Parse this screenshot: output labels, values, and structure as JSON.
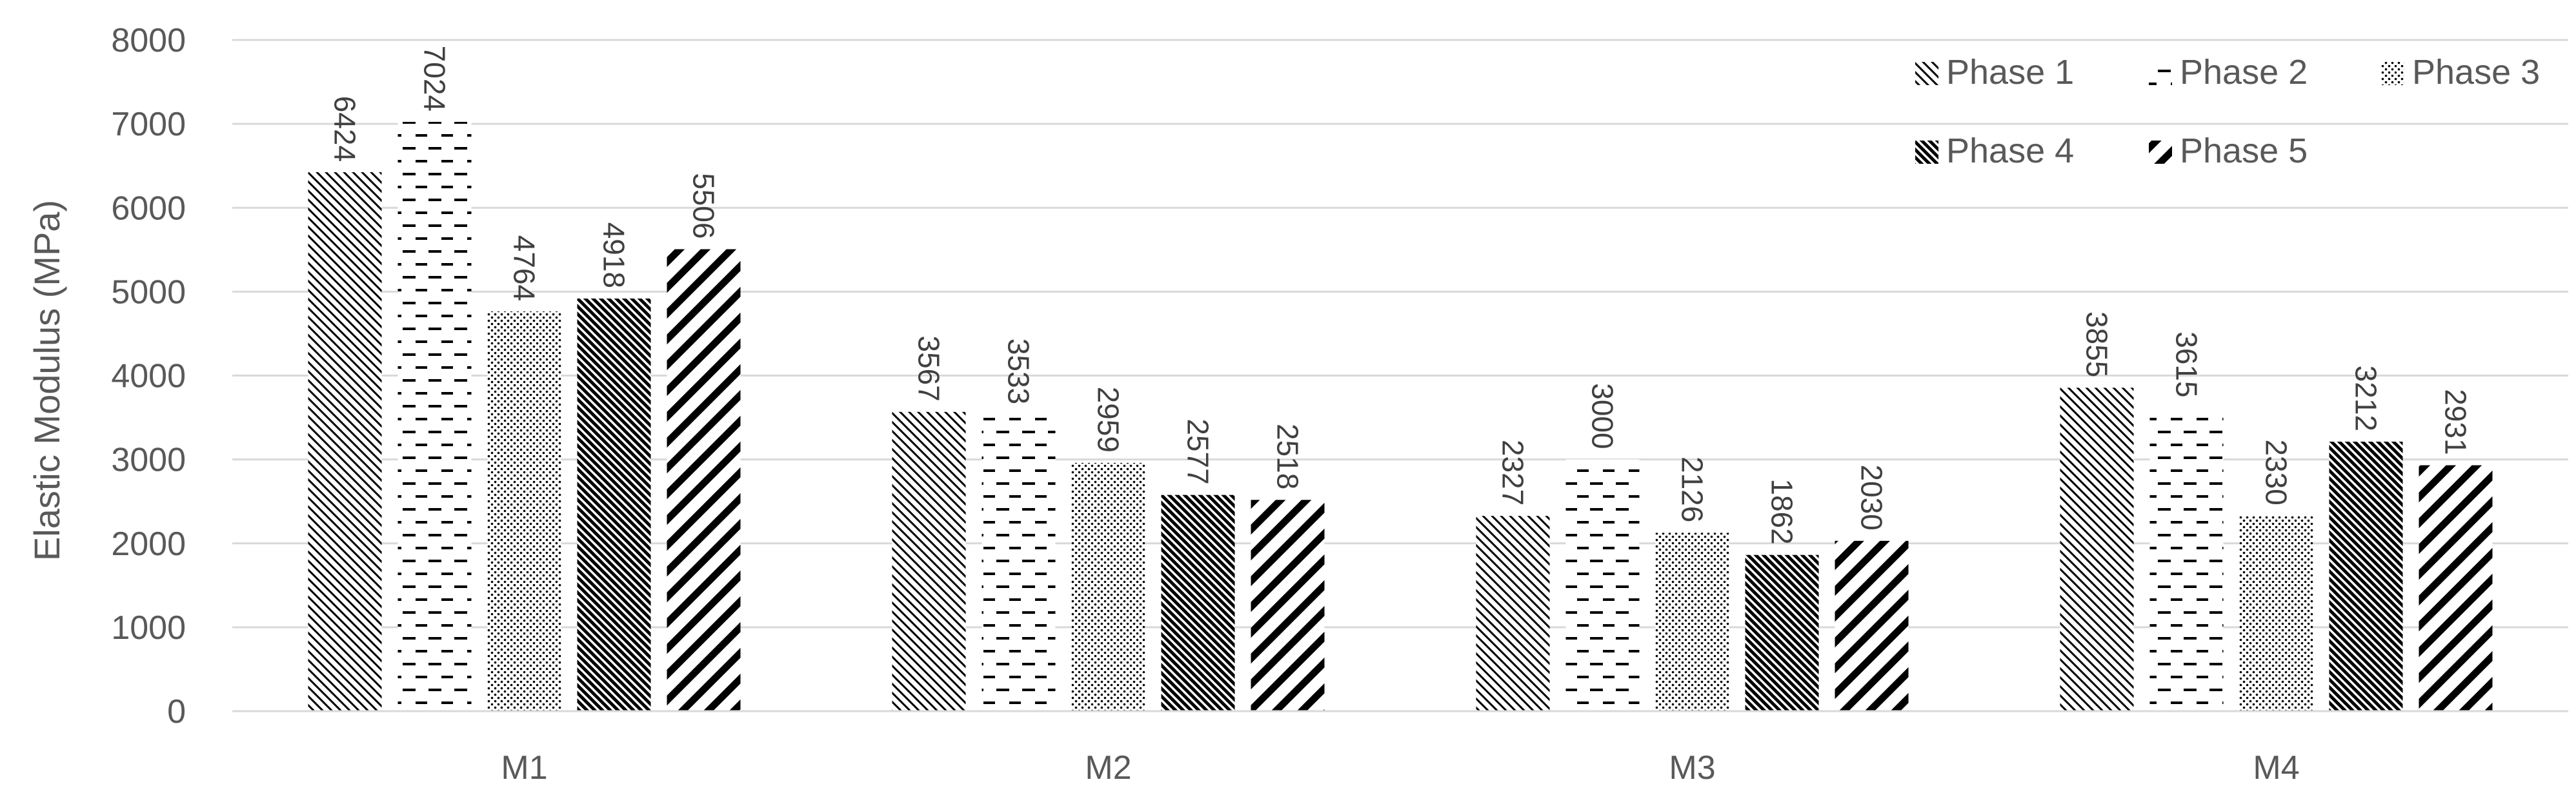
{
  "chart_data": {
    "type": "bar",
    "categories": [
      "M1",
      "M2",
      "M3",
      "M4"
    ],
    "series": [
      {
        "name": "Phase 1",
        "values": [
          6424,
          3567,
          2327,
          3855
        ]
      },
      {
        "name": "Phase 2",
        "values": [
          7024,
          3533,
          3000,
          3615
        ]
      },
      {
        "name": "Phase 3",
        "values": [
          4764,
          2959,
          2126,
          2330
        ]
      },
      {
        "name": "Phase 4",
        "values": [
          4918,
          2577,
          1862,
          3212
        ]
      },
      {
        "name": "Phase 5",
        "values": [
          5506,
          2518,
          2030,
          2931
        ]
      }
    ],
    "title": "",
    "xlabel": "",
    "ylabel": "Elastic Modulus (MPa)",
    "ylim": [
      0,
      8000
    ],
    "yticks": [
      0,
      1000,
      2000,
      3000,
      4000,
      5000,
      6000,
      7000,
      8000
    ],
    "grid": true,
    "legend_position": "top-right",
    "data_labels": true,
    "colors": {
      "gridline": "#d9d9d9",
      "bar": "#000000",
      "text": "#595959"
    },
    "patterns": [
      "fine-diagonal-down",
      "dashed-horizontal",
      "dotted",
      "dense-diagonal-down",
      "wide-diagonal-up"
    ]
  }
}
